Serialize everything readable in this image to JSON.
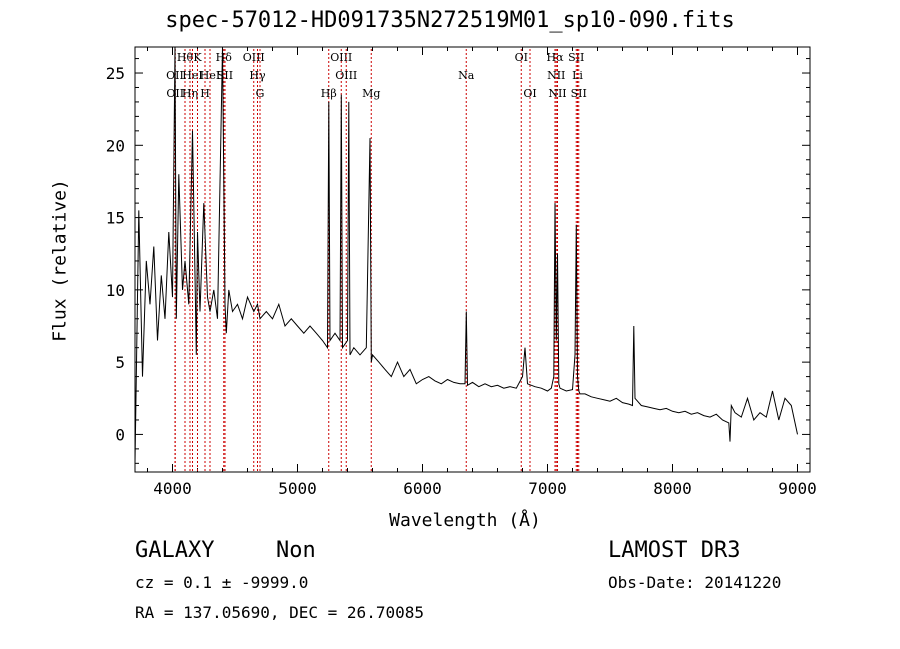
{
  "chart_data": {
    "type": "line",
    "title": "spec-57012-HD091735N272519M01_sp10-090.fits",
    "xlabel": "Wavelength (Å)",
    "ylabel": "Flux (relative)",
    "xlim": [
      3700,
      9100
    ],
    "ylim": [
      -2.6,
      26.8
    ],
    "xticks": [
      4000,
      5000,
      6000,
      7000,
      8000,
      9000
    ],
    "yticks": [
      0,
      5,
      10,
      15,
      20,
      25
    ],
    "grid": false,
    "line_color": "#000000",
    "marker_color": "#cc0000",
    "series": [
      {
        "x": [
          3700,
          3730,
          3760,
          3790,
          3820,
          3850,
          3880,
          3910,
          3940,
          3970,
          4000,
          4020,
          4030,
          4050,
          4080,
          4100,
          4130,
          4160,
          4180,
          4190,
          4200,
          4220,
          4250,
          4280,
          4300,
          4330,
          4360,
          4400,
          4420,
          4430,
          4450,
          4480,
          4520,
          4560,
          4600,
          4650,
          4680,
          4700,
          4750,
          4800,
          4850,
          4900,
          4950,
          5000,
          5050,
          5100,
          5150,
          5200,
          5240,
          5250,
          5260,
          5300,
          5340,
          5350,
          5360,
          5400,
          5410,
          5420,
          5450,
          5500,
          5550,
          5580,
          5590,
          5600,
          5650,
          5700,
          5750,
          5800,
          5850,
          5900,
          5950,
          6000,
          6050,
          6100,
          6150,
          6200,
          6250,
          6300,
          6340,
          6350,
          6360,
          6400,
          6450,
          6500,
          6550,
          6600,
          6650,
          6700,
          6750,
          6800,
          6820,
          6840,
          6900,
          6950,
          7000,
          7030,
          7050,
          7060,
          7070,
          7080,
          7090,
          7100,
          7150,
          7200,
          7220,
          7230,
          7240,
          7250,
          7260,
          7300,
          7350,
          7400,
          7450,
          7500,
          7550,
          7600,
          7650,
          7680,
          7690,
          7700,
          7750,
          7800,
          7850,
          7900,
          7950,
          8000,
          8050,
          8100,
          8150,
          8200,
          8250,
          8300,
          8350,
          8400,
          8450,
          8460,
          8470,
          8500,
          8550,
          8600,
          8650,
          8700,
          8750,
          8800,
          8850,
          8900,
          8950,
          9000
        ],
        "values": [
          -2.0,
          15.5,
          4.0,
          12.0,
          9.0,
          13.0,
          6.5,
          11.0,
          8.0,
          14.0,
          9.5,
          27.0,
          8.0,
          18.0,
          10.0,
          12.0,
          9.0,
          21.0,
          11.0,
          5.5,
          14.0,
          8.5,
          16.0,
          9.5,
          8.5,
          10.0,
          8.0,
          27.0,
          9.0,
          7.0,
          10.0,
          8.5,
          9.0,
          8.0,
          9.5,
          8.5,
          9.0,
          8.0,
          8.5,
          8.0,
          9.0,
          7.5,
          8.0,
          7.5,
          7.0,
          7.5,
          7.0,
          6.5,
          6.0,
          23.0,
          6.5,
          7.0,
          6.5,
          23.5,
          6.0,
          6.5,
          23.0,
          5.5,
          6.0,
          5.5,
          6.0,
          20.5,
          5.0,
          5.5,
          5.0,
          4.5,
          4.0,
          5.0,
          4.0,
          4.5,
          3.5,
          3.8,
          4.0,
          3.7,
          3.5,
          3.8,
          3.6,
          3.5,
          3.5,
          8.5,
          3.4,
          3.6,
          3.3,
          3.5,
          3.3,
          3.4,
          3.2,
          3.3,
          3.2,
          4.0,
          6.0,
          3.5,
          3.3,
          3.2,
          3.0,
          3.2,
          4.0,
          16.0,
          6.5,
          12.5,
          3.5,
          3.2,
          3.0,
          3.1,
          5.5,
          14.5,
          4.0,
          3.0,
          2.8,
          2.8,
          2.6,
          2.5,
          2.4,
          2.3,
          2.5,
          2.2,
          2.1,
          2.0,
          7.5,
          2.5,
          2.0,
          1.9,
          1.8,
          1.7,
          1.8,
          1.6,
          1.5,
          1.6,
          1.4,
          1.5,
          1.3,
          1.2,
          1.4,
          1.0,
          0.8,
          -0.5,
          2.0,
          1.5,
          1.2,
          2.5,
          1.0,
          1.5,
          1.2,
          3.0,
          1.0,
          2.5,
          2.0,
          0.0
        ]
      }
    ],
    "lines": [
      {
        "x": 4020,
        "label": "OII",
        "row": 1
      },
      {
        "x": 4022,
        "label": "OII",
        "row": 2
      },
      {
        "x": 4100,
        "label": "Hθ",
        "row": 0
      },
      {
        "x": 4140,
        "label": "Hη",
        "row": 2
      },
      {
        "x": 4160,
        "label": "HeI",
        "row": 1
      },
      {
        "x": 4200,
        "label": "K",
        "row": 0
      },
      {
        "x": 4260,
        "label": "H",
        "row": 2
      },
      {
        "x": 4300,
        "label": "HeI",
        "row": 1
      },
      {
        "x": 4410,
        "label": "Hδ",
        "row": 0
      },
      {
        "x": 4420,
        "label": "SII",
        "row": 1
      },
      {
        "x": 4650,
        "label": "OIII",
        "row": 0
      },
      {
        "x": 4680,
        "label": "Hγ",
        "row": 1
      },
      {
        "x": 4700,
        "label": "G",
        "row": 2
      },
      {
        "x": 5250,
        "label": "Hβ",
        "row": 2
      },
      {
        "x": 5350,
        "label": "OIII",
        "row": 0
      },
      {
        "x": 5390,
        "label": "OIII",
        "row": 1
      },
      {
        "x": 5590,
        "label": "Mg",
        "row": 2
      },
      {
        "x": 6350,
        "label": "Na",
        "row": 1
      },
      {
        "x": 6790,
        "label": "OI",
        "row": 0
      },
      {
        "x": 6860,
        "label": "OI",
        "row": 2
      },
      {
        "x": 7060,
        "label": "Hα",
        "row": 0
      },
      {
        "x": 7070,
        "label": "NII",
        "row": 1
      },
      {
        "x": 7080,
        "label": "NII",
        "row": 2
      },
      {
        "x": 7230,
        "label": "SII",
        "row": 0
      },
      {
        "x": 7240,
        "label": "Li",
        "row": 1
      },
      {
        "x": 7250,
        "label": "SII",
        "row": 2
      }
    ]
  },
  "info": {
    "object_class": "GALAXY",
    "subclass": "Non",
    "cz_line": "cz = 0.1 ± -9999.0",
    "radec_line": "RA = 137.05690, DEC =  26.70085",
    "survey": "LAMOST DR3",
    "obs_date": "Obs-Date: 20141220"
  }
}
